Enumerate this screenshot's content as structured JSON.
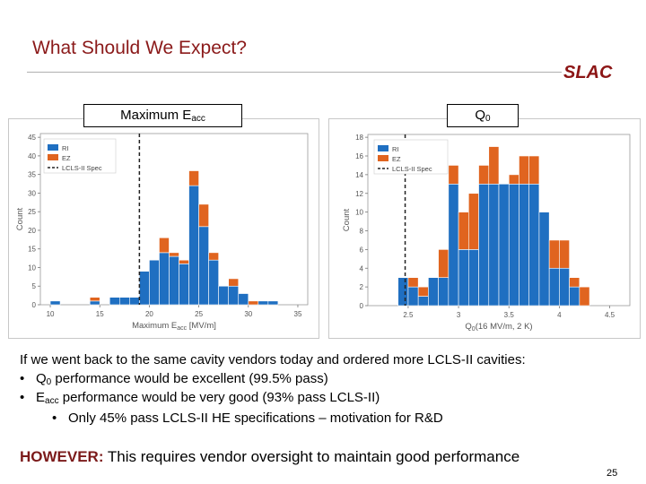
{
  "slide": {
    "title": "What Should We Expect?",
    "logo_text": "SLAC",
    "page_number": "25"
  },
  "labels": {
    "left_main": "Maximum E",
    "left_sub": "acc",
    "right_main": "Q",
    "right_sub": "0"
  },
  "text": {
    "line1": "If we went back to the same cavity vendors today and ordered more LCLS-II cavities:",
    "line2_bullet": "•",
    "line2_q": "Q",
    "line2_sub": "0",
    "line2_rest": " performance would be excellent (99.5% pass)",
    "line3_bullet": "•",
    "line3_e": "E",
    "line3_sub": "acc",
    "line3_rest": " performance would be very good (93% pass LCLS-II)",
    "line4_bullet": "•",
    "line4_rest": "Only 45% pass LCLS-II HE specifications – motivation for R&D",
    "however_label": "HOWEVER:",
    "however_rest": " This requires vendor oversight to maintain good performance"
  },
  "colors": {
    "ri": "#1f6fc1",
    "ez": "#e0641f",
    "title": "#8b1a1a",
    "logo": "#8c1515"
  },
  "chart_data": [
    {
      "type": "bar",
      "stacked": true,
      "xlabel": "Maximum E",
      "xlabel_sub": "acc",
      "xlabel_unit": " [MV/m]",
      "ylabel": "Count",
      "xlim": [
        9,
        36
      ],
      "ylim": [
        0,
        46
      ],
      "xticks": [
        10,
        15,
        20,
        25,
        30,
        35
      ],
      "yticks": [
        0,
        5,
        10,
        15,
        20,
        25,
        30,
        35,
        40,
        45
      ],
      "bin_width": 1,
      "bin_starts": [
        10,
        11,
        12,
        13,
        14,
        15,
        16,
        17,
        18,
        19,
        20,
        21,
        22,
        23,
        24,
        25,
        26,
        27,
        28,
        29,
        30,
        31,
        32
      ],
      "series": [
        {
          "name": "RI",
          "values": [
            1,
            0,
            0,
            0,
            1,
            0,
            2,
            2,
            2,
            9,
            12,
            14,
            13,
            11,
            32,
            21,
            12,
            5,
            5,
            3,
            0,
            1,
            1
          ]
        },
        {
          "name": "EZ",
          "values": [
            0,
            0,
            0,
            0,
            1,
            0,
            0,
            0,
            0,
            0,
            0,
            4,
            1,
            1,
            4,
            6,
            2,
            0,
            2,
            0,
            1,
            0,
            0
          ]
        }
      ],
      "legend": [
        "RI",
        "EZ",
        "LCLS-II Spec"
      ],
      "legend_position": "top-left",
      "spec_line": {
        "x": 19
      }
    },
    {
      "type": "bar",
      "stacked": true,
      "xlabel": "Q",
      "xlabel_sub": "0",
      "xlabel_unit": "(16 MV/m, 2 K)",
      "ylabel": "Count",
      "xlim": [
        2.1,
        4.7
      ],
      "ylim": [
        0,
        18.3
      ],
      "xticks": [
        2.5,
        3,
        3.5,
        4,
        4.5
      ],
      "xtick_labels": [
        "2.5",
        "3",
        "3.5",
        "4",
        "4.5"
      ],
      "yticks": [
        0,
        2,
        4,
        6,
        8,
        10,
        12,
        14,
        16,
        18
      ],
      "bin_width": 0.1,
      "bin_starts": [
        2.4,
        2.5,
        2.6,
        2.7,
        2.8,
        2.9,
        3.0,
        3.1,
        3.2,
        3.3,
        3.4,
        3.5,
        3.6,
        3.7,
        3.8,
        3.9,
        4.0,
        4.1,
        4.2
      ],
      "series": [
        {
          "name": "RI",
          "values": [
            3,
            2,
            1,
            3,
            3,
            13,
            6,
            6,
            13,
            13,
            13,
            13,
            13,
            13,
            10,
            4,
            4,
            2,
            0
          ]
        },
        {
          "name": "EZ",
          "values": [
            0,
            1,
            1,
            0,
            3,
            2,
            4,
            6,
            2,
            4,
            0,
            1,
            3,
            3,
            0,
            3,
            3,
            1,
            2
          ]
        }
      ],
      "legend": [
        "RI",
        "EZ",
        "LCLS-II Spec"
      ],
      "legend_position": "top-left",
      "spec_line": {
        "x": 2.47
      }
    }
  ]
}
